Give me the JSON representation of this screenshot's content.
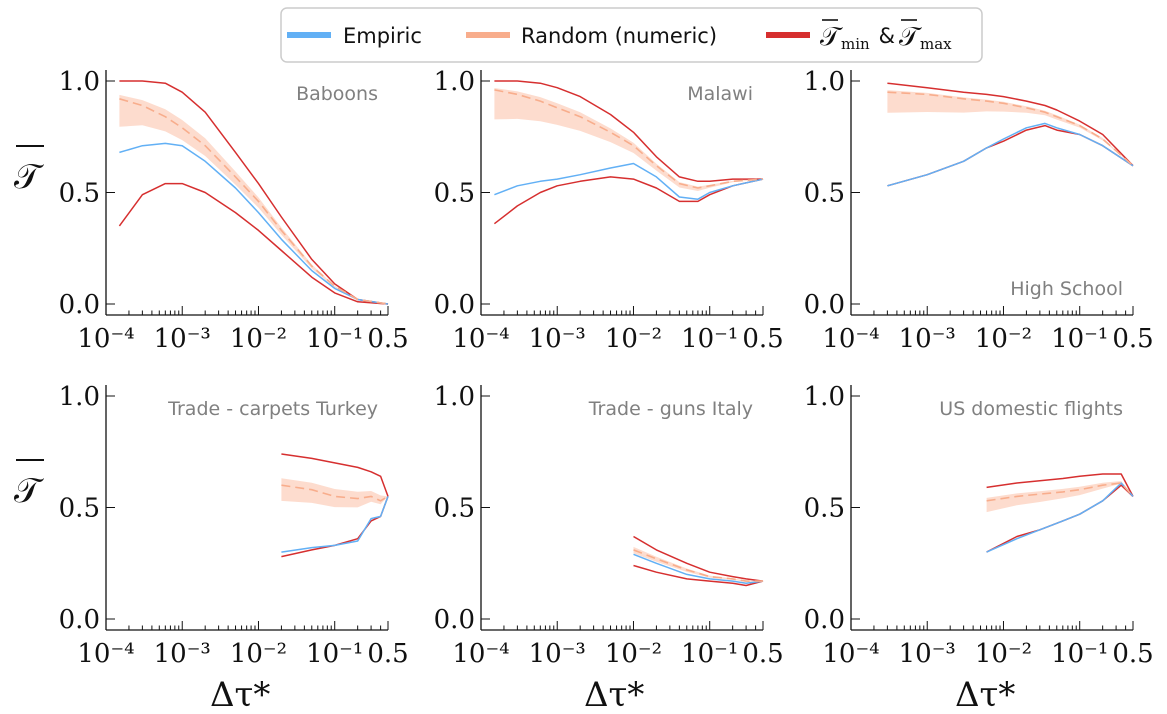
{
  "legend": {
    "items": [
      {
        "label": "Empiric",
        "color": "#62b0f5"
      },
      {
        "label": "Random (numeric)",
        "color": "#f8ad8c"
      },
      {
        "label_main": "𝒯",
        "label_sub1": "min",
        "label_amp": " & ",
        "label_sub2": "max",
        "color": "#d62f2f"
      }
    ]
  },
  "axes": {
    "ylabel": "𝒯",
    "xlabel": "Δτ*",
    "xticks": [
      "10⁻⁴",
      "10⁻³",
      "10⁻²",
      "10⁻¹",
      "0.5"
    ],
    "yticks": [
      "0.0",
      "0.5",
      "1.0"
    ]
  },
  "chart_data": [
    {
      "type": "line",
      "title": "Baboons",
      "x_scale": "log",
      "xlim": [
        0.0001,
        0.5
      ],
      "ylim": [
        0,
        1
      ],
      "series": [
        {
          "name": "Empiric",
          "x": [
            0.00015,
            0.0003,
            0.0006,
            0.001,
            0.002,
            0.005,
            0.01,
            0.02,
            0.05,
            0.1,
            0.2,
            0.5
          ],
          "y": [
            0.68,
            0.71,
            0.72,
            0.71,
            0.64,
            0.52,
            0.41,
            0.29,
            0.15,
            0.07,
            0.02,
            0.0
          ]
        },
        {
          "name": "Random (numeric)",
          "x": [
            0.00015,
            0.0003,
            0.0006,
            0.001,
            0.002,
            0.005,
            0.01,
            0.02,
            0.05,
            0.1,
            0.2,
            0.5
          ],
          "y": [
            0.92,
            0.89,
            0.84,
            0.79,
            0.71,
            0.57,
            0.46,
            0.33,
            0.17,
            0.08,
            0.02,
            0.0
          ]
        },
        {
          "name": "min",
          "x": [
            0.00015,
            0.0003,
            0.0006,
            0.001,
            0.002,
            0.005,
            0.01,
            0.02,
            0.05,
            0.1,
            0.2,
            0.5
          ],
          "y": [
            0.35,
            0.49,
            0.54,
            0.54,
            0.5,
            0.41,
            0.33,
            0.24,
            0.12,
            0.05,
            0.01,
            0.0
          ]
        },
        {
          "name": "max",
          "x": [
            0.00015,
            0.0003,
            0.0006,
            0.001,
            0.002,
            0.005,
            0.01,
            0.02,
            0.05,
            0.1,
            0.2,
            0.5
          ],
          "y": [
            1.0,
            1.0,
            0.99,
            0.95,
            0.86,
            0.68,
            0.54,
            0.39,
            0.2,
            0.09,
            0.02,
            0.0
          ]
        }
      ]
    },
    {
      "type": "line",
      "title": "Malawi",
      "x_scale": "log",
      "xlim": [
        0.0001,
        0.5
      ],
      "ylim": [
        0,
        1
      ],
      "series": [
        {
          "name": "Empiric",
          "x": [
            0.00015,
            0.0003,
            0.0006,
            0.001,
            0.002,
            0.005,
            0.01,
            0.02,
            0.04,
            0.07,
            0.1,
            0.2,
            0.5
          ],
          "y": [
            0.49,
            0.53,
            0.55,
            0.56,
            0.58,
            0.61,
            0.63,
            0.57,
            0.48,
            0.47,
            0.5,
            0.53,
            0.56
          ]
        },
        {
          "name": "Random (numeric)",
          "x": [
            0.00015,
            0.0003,
            0.0006,
            0.001,
            0.002,
            0.005,
            0.01,
            0.02,
            0.04,
            0.07,
            0.1,
            0.2,
            0.5
          ],
          "y": [
            0.96,
            0.94,
            0.91,
            0.88,
            0.84,
            0.77,
            0.71,
            0.62,
            0.54,
            0.52,
            0.53,
            0.55,
            0.56
          ]
        },
        {
          "name": "min",
          "x": [
            0.00015,
            0.0003,
            0.0006,
            0.001,
            0.002,
            0.005,
            0.01,
            0.02,
            0.04,
            0.07,
            0.1,
            0.2,
            0.5
          ],
          "y": [
            0.36,
            0.44,
            0.5,
            0.53,
            0.55,
            0.57,
            0.56,
            0.52,
            0.46,
            0.46,
            0.49,
            0.53,
            0.56
          ]
        },
        {
          "name": "max",
          "x": [
            0.00015,
            0.0003,
            0.0006,
            0.001,
            0.002,
            0.005,
            0.01,
            0.02,
            0.04,
            0.07,
            0.1,
            0.2,
            0.5
          ],
          "y": [
            1.0,
            1.0,
            0.99,
            0.97,
            0.93,
            0.85,
            0.77,
            0.66,
            0.57,
            0.55,
            0.55,
            0.56,
            0.56
          ]
        }
      ]
    },
    {
      "type": "line",
      "title": "High School",
      "x_scale": "log",
      "xlim": [
        0.0001,
        0.5
      ],
      "ylim": [
        0,
        1
      ],
      "series": [
        {
          "name": "Empiric",
          "x": [
            0.0003,
            0.001,
            0.003,
            0.006,
            0.01,
            0.02,
            0.035,
            0.05,
            0.1,
            0.2,
            0.5
          ],
          "y": [
            0.53,
            0.58,
            0.64,
            0.7,
            0.74,
            0.79,
            0.81,
            0.79,
            0.76,
            0.71,
            0.62
          ]
        },
        {
          "name": "Random (numeric)",
          "x": [
            0.0003,
            0.001,
            0.003,
            0.006,
            0.01,
            0.02,
            0.035,
            0.05,
            0.1,
            0.2,
            0.5
          ],
          "y": [
            0.95,
            0.94,
            0.92,
            0.91,
            0.9,
            0.88,
            0.86,
            0.84,
            0.8,
            0.74,
            0.62
          ]
        },
        {
          "name": "min",
          "x": [
            0.0003,
            0.001,
            0.003,
            0.006,
            0.01,
            0.02,
            0.035,
            0.05,
            0.1,
            0.2,
            0.5
          ],
          "y": [
            0.53,
            0.58,
            0.64,
            0.7,
            0.73,
            0.78,
            0.8,
            0.78,
            0.76,
            0.71,
            0.62
          ]
        },
        {
          "name": "max",
          "x": [
            0.0003,
            0.001,
            0.003,
            0.006,
            0.01,
            0.02,
            0.035,
            0.05,
            0.1,
            0.2,
            0.5
          ],
          "y": [
            0.99,
            0.97,
            0.95,
            0.94,
            0.93,
            0.91,
            0.89,
            0.87,
            0.82,
            0.76,
            0.62
          ]
        }
      ]
    },
    {
      "type": "line",
      "title": "Trade - carpets Turkey",
      "x_scale": "log",
      "xlim": [
        0.0001,
        0.5
      ],
      "ylim": [
        0,
        1
      ],
      "series": [
        {
          "name": "Empiric",
          "x": [
            0.02,
            0.05,
            0.1,
            0.2,
            0.3,
            0.4,
            0.5
          ],
          "y": [
            0.3,
            0.32,
            0.33,
            0.35,
            0.45,
            0.46,
            0.55
          ]
        },
        {
          "name": "Random (numeric)",
          "x": [
            0.02,
            0.05,
            0.1,
            0.2,
            0.3,
            0.4,
            0.5
          ],
          "y": [
            0.6,
            0.58,
            0.55,
            0.54,
            0.55,
            0.53,
            0.55
          ]
        },
        {
          "name": "min",
          "x": [
            0.02,
            0.05,
            0.1,
            0.2,
            0.3,
            0.4,
            0.5
          ],
          "y": [
            0.28,
            0.31,
            0.33,
            0.36,
            0.44,
            0.46,
            0.55
          ]
        },
        {
          "name": "max",
          "x": [
            0.02,
            0.05,
            0.1,
            0.2,
            0.3,
            0.4,
            0.5
          ],
          "y": [
            0.74,
            0.72,
            0.7,
            0.68,
            0.66,
            0.64,
            0.55
          ]
        }
      ]
    },
    {
      "type": "line",
      "title": "Trade - guns Italy",
      "x_scale": "log",
      "xlim": [
        0.0001,
        0.5
      ],
      "ylim": [
        0,
        1
      ],
      "series": [
        {
          "name": "Empiric",
          "x": [
            0.01,
            0.02,
            0.05,
            0.1,
            0.2,
            0.3,
            0.5
          ],
          "y": [
            0.29,
            0.25,
            0.2,
            0.18,
            0.17,
            0.16,
            0.17
          ]
        },
        {
          "name": "Random (numeric)",
          "x": [
            0.01,
            0.02,
            0.05,
            0.1,
            0.2,
            0.3,
            0.5
          ],
          "y": [
            0.31,
            0.27,
            0.22,
            0.19,
            0.18,
            0.17,
            0.17
          ]
        },
        {
          "name": "min",
          "x": [
            0.01,
            0.02,
            0.05,
            0.1,
            0.2,
            0.3,
            0.5
          ],
          "y": [
            0.24,
            0.21,
            0.18,
            0.17,
            0.16,
            0.15,
            0.17
          ]
        },
        {
          "name": "max",
          "x": [
            0.01,
            0.02,
            0.05,
            0.1,
            0.2,
            0.3,
            0.5
          ],
          "y": [
            0.37,
            0.31,
            0.25,
            0.21,
            0.19,
            0.18,
            0.17
          ]
        }
      ]
    },
    {
      "type": "line",
      "title": "US domestic flights",
      "x_scale": "log",
      "xlim": [
        0.0001,
        0.5
      ],
      "ylim": [
        0,
        1
      ],
      "series": [
        {
          "name": "Empiric",
          "x": [
            0.006,
            0.015,
            0.03,
            0.06,
            0.1,
            0.2,
            0.35,
            0.5
          ],
          "y": [
            0.3,
            0.36,
            0.4,
            0.44,
            0.47,
            0.53,
            0.61,
            0.55
          ]
        },
        {
          "name": "Random (numeric)",
          "x": [
            0.006,
            0.015,
            0.03,
            0.06,
            0.1,
            0.2,
            0.35,
            0.5
          ],
          "y": [
            0.53,
            0.55,
            0.56,
            0.57,
            0.58,
            0.6,
            0.61,
            0.55
          ]
        },
        {
          "name": "min",
          "x": [
            0.006,
            0.015,
            0.03,
            0.06,
            0.1,
            0.2,
            0.35,
            0.5
          ],
          "y": [
            0.3,
            0.37,
            0.4,
            0.44,
            0.47,
            0.53,
            0.6,
            0.55
          ]
        },
        {
          "name": "max",
          "x": [
            0.006,
            0.015,
            0.03,
            0.06,
            0.1,
            0.2,
            0.35,
            0.5
          ],
          "y": [
            0.59,
            0.61,
            0.62,
            0.63,
            0.64,
            0.65,
            0.65,
            0.55
          ]
        }
      ]
    }
  ]
}
